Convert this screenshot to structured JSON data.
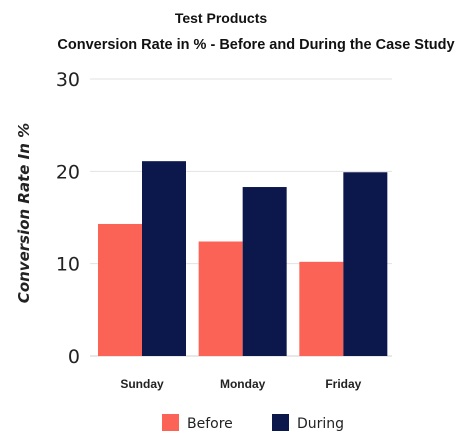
{
  "chart_data": {
    "type": "bar",
    "title": "Test Products",
    "subtitle": "Conversion Rate in % - Before and During the Case Study",
    "xlabel": "",
    "ylabel": "Conversion Rate In %",
    "categories": [
      "Sunday",
      "Monday",
      "Friday"
    ],
    "series": [
      {
        "name": "Before",
        "color": "#fa6355",
        "values": [
          14.3,
          12.4,
          10.2
        ]
      },
      {
        "name": "During",
        "color": "#0c174b",
        "values": [
          21.1,
          18.3,
          19.9
        ]
      }
    ],
    "ylim": [
      0,
      30
    ],
    "yticks": [
      0,
      10,
      20,
      30
    ],
    "grid": true,
    "legend_position": "bottom"
  }
}
